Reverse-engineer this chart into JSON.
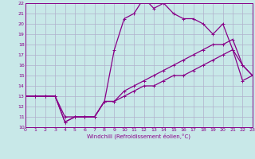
{
  "xlabel": "Windchill (Refroidissement éolien,°C)",
  "xlim": [
    0,
    23
  ],
  "ylim": [
    10,
    22
  ],
  "xticks": [
    0,
    1,
    2,
    3,
    4,
    5,
    6,
    7,
    8,
    9,
    10,
    11,
    12,
    13,
    14,
    15,
    16,
    17,
    18,
    19,
    20,
    21,
    22,
    23
  ],
  "yticks": [
    10,
    11,
    12,
    13,
    14,
    15,
    16,
    17,
    18,
    19,
    20,
    21,
    22
  ],
  "bg_color": "#c8e8e8",
  "grid_color": "#b0b0cc",
  "line_color": "#880088",
  "line1_x": [
    0,
    1,
    2,
    3,
    4,
    5,
    6,
    7,
    8,
    9,
    10,
    11,
    12,
    13,
    14,
    15,
    16,
    17,
    18,
    19,
    20,
    21,
    22,
    23
  ],
  "line1_y": [
    13.0,
    13.0,
    13.0,
    13.0,
    11.0,
    11.0,
    11.0,
    11.0,
    12.5,
    17.5,
    20.5,
    21.0,
    22.5,
    21.5,
    22.0,
    21.0,
    20.5,
    20.5,
    20.0,
    19.0,
    20.0,
    17.5,
    16.0,
    15.0
  ],
  "line2_x": [
    0,
    1,
    2,
    3,
    4,
    5,
    6,
    7,
    8,
    9,
    10,
    11,
    12,
    13,
    14,
    15,
    16,
    17,
    18,
    19,
    20,
    21,
    22,
    23
  ],
  "line2_y": [
    13.0,
    13.0,
    13.0,
    13.0,
    10.5,
    11.0,
    11.0,
    11.0,
    12.5,
    12.5,
    13.5,
    14.0,
    14.5,
    15.0,
    15.5,
    16.0,
    16.5,
    17.0,
    17.5,
    18.0,
    18.0,
    18.5,
    16.0,
    15.0
  ],
  "line3_x": [
    0,
    1,
    2,
    3,
    4,
    5,
    6,
    7,
    8,
    9,
    10,
    11,
    12,
    13,
    14,
    15,
    16,
    17,
    18,
    19,
    20,
    21,
    22,
    23
  ],
  "line3_y": [
    13.0,
    13.0,
    13.0,
    13.0,
    10.5,
    11.0,
    11.0,
    11.0,
    12.5,
    12.5,
    13.0,
    13.5,
    14.0,
    14.0,
    14.5,
    15.0,
    15.0,
    15.5,
    16.0,
    16.5,
    17.0,
    17.5,
    14.5,
    15.0
  ]
}
